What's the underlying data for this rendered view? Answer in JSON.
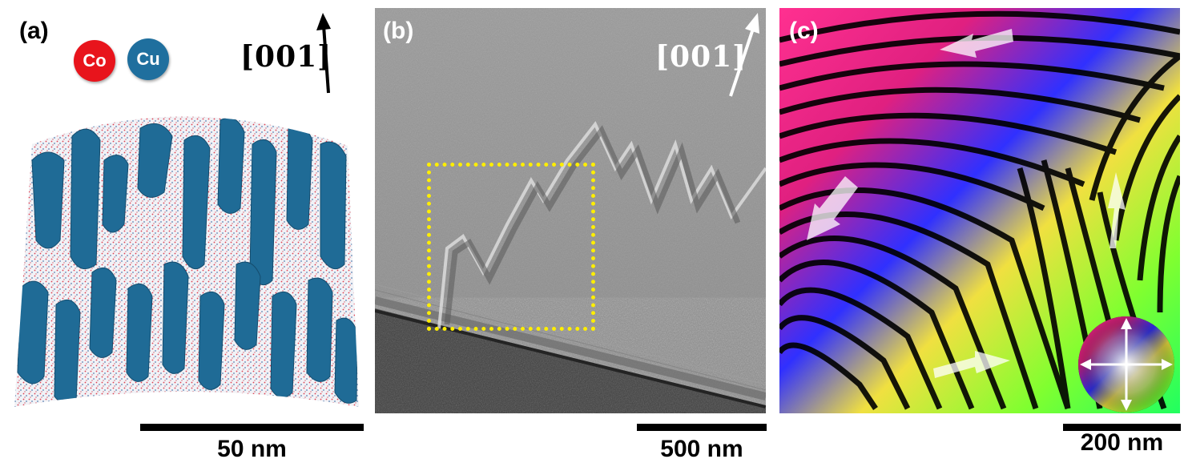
{
  "panel_a": {
    "label": "(a)",
    "legend": [
      {
        "symbol": "Co",
        "color": "#e8141c"
      },
      {
        "symbol": "Cu",
        "color": "#1f6f9e"
      }
    ],
    "direction": "[001]",
    "scale": "50 nm"
  },
  "panel_b": {
    "label": "(b)",
    "direction": "[001]",
    "scale": "500 nm",
    "highlight_color": "#ffee00"
  },
  "panel_c": {
    "label": "(c)",
    "scale": "200 nm"
  }
}
